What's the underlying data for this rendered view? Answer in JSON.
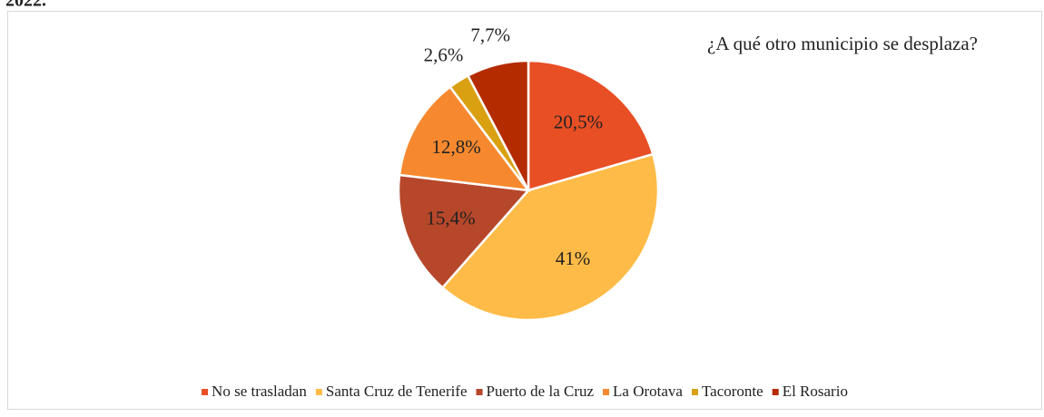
{
  "header_fragment": "2022.",
  "chart_data": {
    "type": "pie",
    "title": "¿A qué otro municipio se desplaza?",
    "categories": [
      "No se trasladan",
      "Santa Cruz de Tenerife",
      "Puerto de la Cruz",
      "La Orotava",
      "Tacoronte",
      "El Rosario"
    ],
    "values": [
      20.5,
      41,
      15.4,
      12.8,
      2.6,
      7.7
    ],
    "value_labels": [
      "20,5%",
      "41%",
      "15,4%",
      "12,8%",
      "2,6%",
      "7,7%"
    ],
    "colors": [
      "#e84f25",
      "#ffbb47",
      "#b6472a",
      "#f6892f",
      "#d9a112",
      "#b42b00"
    ],
    "legend": "bottom"
  }
}
